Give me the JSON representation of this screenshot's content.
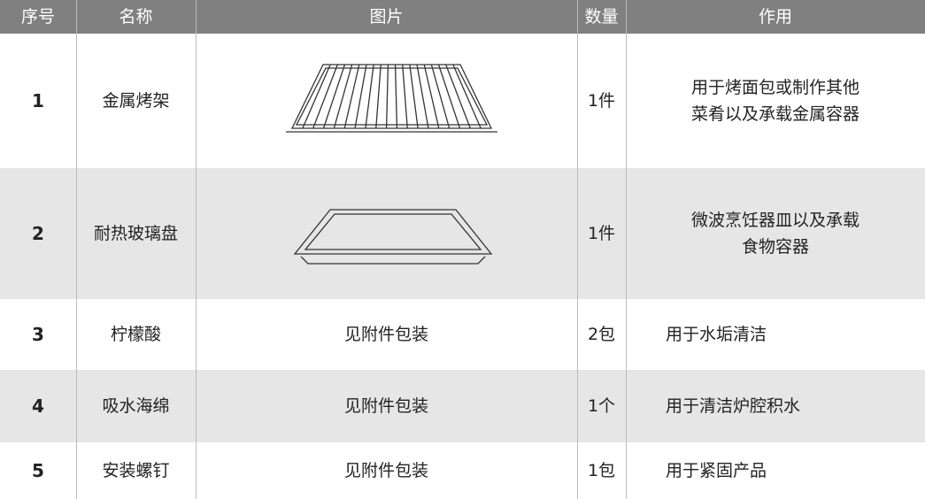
{
  "table": {
    "header": [
      "序号",
      "名称",
      "图片",
      "数量",
      "作用"
    ],
    "rows": [
      {
        "index": "1",
        "name": "金属烤架",
        "quantity": "1件",
        "use": [
          "用于烤面包或制作其他",
          "菜肴以及承载金属容器"
        ]
      },
      {
        "index": "2",
        "name": "耐热玻璃盘",
        "quantity": "1件",
        "use": [
          "微波烹饪器皿以及承载",
          "食物容器"
        ]
      },
      {
        "index": "3",
        "name": "柠檬酸",
        "picture": "见附件包装",
        "quantity": "2包",
        "use": [
          "用于水垢清洁"
        ]
      },
      {
        "index": "4",
        "name": "吸水海绵",
        "picture": "见附件包装",
        "quantity": "1个",
        "use": [
          "用于清洁炉腔积水"
        ]
      },
      {
        "index": "5",
        "name": "安装螺钉",
        "picture": "见附件包装",
        "quantity": "1包",
        "use": [
          "用于紧固产品"
        ]
      }
    ]
  }
}
